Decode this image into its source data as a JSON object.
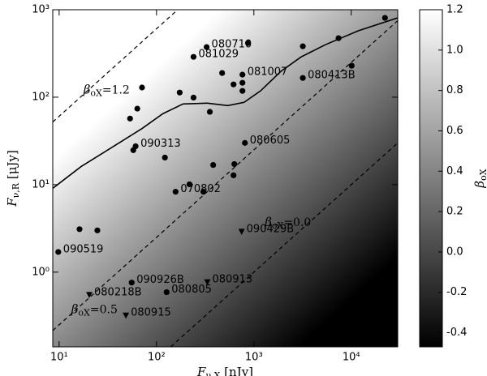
{
  "chart_data": {
    "type": "scatter",
    "log_x": true,
    "log_y": true,
    "xlim": [
      8.6,
      30000
    ],
    "xticks": [
      {
        "value": 10,
        "label": "10¹"
      },
      {
        "value": 100,
        "label": "10²"
      },
      {
        "value": 1000,
        "label": "10³"
      },
      {
        "value": 10000,
        "label": "10⁴"
      }
    ],
    "ylim": [
      0.14,
      1000
    ],
    "yticks": [
      {
        "value": 1,
        "label": "10⁰"
      },
      {
        "value": 10,
        "label": "10¹"
      },
      {
        "value": 100,
        "label": "10²"
      },
      {
        "value": 1000,
        "label": "10³"
      }
    ],
    "x_label": {
      "symbol": "F",
      "subscript": "ν,X",
      "unit": " [nJy]"
    },
    "y_label": {
      "symbol": "F",
      "subscript": "ν,R",
      "unit": " [μJy]"
    },
    "series": [
      {
        "marker": "circle",
        "color": "#000000",
        "x": [
          327,
          240,
          763,
          3180,
          61,
          809,
          157,
          9.8,
          55.6,
          127,
          22200,
          7400,
          3180,
          870,
          10100,
          472,
          618,
          763,
          763,
          173,
          240,
          71,
          63.5,
          53.5,
          353,
          57.8,
          122,
          382,
          630,
          618,
          218,
          303,
          16.2,
          24.7
        ],
        "values": [
          374,
          289,
          181,
          166,
          27.5,
          30,
          8.3,
          1.7,
          0.76,
          0.59,
          807,
          473,
          382,
          416,
          229,
          189,
          140,
          146,
          118,
          113,
          99,
          129,
          74,
          57,
          68,
          24.8,
          20.4,
          16.8,
          17.2,
          12.8,
          10.1,
          8.3,
          3.1,
          3.0
        ],
        "labels": [
          "080710",
          "081029",
          "081007",
          "080413B",
          "090313",
          "080605",
          "070802",
          "090519",
          "090926B",
          "080805",
          null,
          null,
          null,
          null,
          null,
          null,
          null,
          null,
          null,
          null,
          null,
          null,
          null,
          null,
          null,
          null,
          null,
          null,
          null,
          null,
          null,
          null,
          null,
          null
        ]
      },
      {
        "marker": "triangle",
        "color": "#000000",
        "x": [
          748,
          333,
          20.4,
          48.5
        ],
        "values": [
          2.9,
          0.77,
          0.55,
          0.32
        ],
        "labels": [
          "090429B",
          "080913",
          "080218B",
          "080915"
        ]
      }
    ],
    "curve": {
      "color": "#000000",
      "x": [
        8.58,
        16.8,
        36.4,
        71.4,
        116,
        187,
        333,
        540,
        794,
        1170,
        1890,
        3060,
        5450,
        11800,
        30000
      ],
      "y": [
        9.06,
        16.1,
        27.5,
        44,
        64.7,
        83.7,
        85.5,
        80.2,
        87.4,
        118,
        197,
        289,
        399,
        574,
        807
      ]
    },
    "reference_lines": [
      {
        "beta": 1.2,
        "symbol": "β",
        "subscript": "oX",
        "text": "=1.2",
        "x": [
          8.6,
          165
        ],
        "y": [
          52,
          1000
        ]
      },
      {
        "beta": 0.5,
        "symbol": "β",
        "subscript": "oX",
        "text": "=0.5",
        "x": [
          8.6,
          30000
        ],
        "y": [
          0.215,
          750
        ]
      },
      {
        "beta": 0.0,
        "symbol": "β",
        "subscript": "oX",
        "text": "=0.0",
        "x": [
          140,
          30000
        ],
        "y": [
          0.14,
          30
        ]
      }
    ],
    "colorbar": {
      "colormap": "gray",
      "clim": [
        -0.47,
        1.2
      ],
      "ticks": [
        -0.4,
        -0.2,
        {
          "value": 0,
          "label": "0.0"
        },
        0.2,
        0.4,
        0.6,
        0.8,
        {
          "value": 1,
          "label": "1.0"
        },
        1.2
      ],
      "label": {
        "symbol": "β",
        "subscript": "oX"
      }
    }
  }
}
